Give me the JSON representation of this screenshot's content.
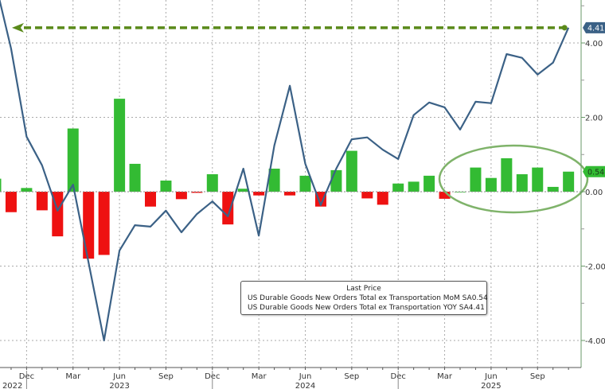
{
  "chart_data": {
    "type": "bar+line",
    "title": "",
    "legend": {
      "title": "Last Price",
      "position": "bottom-center (inset)",
      "entries": [
        {
          "name": "US Durable Goods New Orders Total ex Transportation MoM SA",
          "last": "0.54",
          "color": "#33bb33",
          "type": "bar"
        },
        {
          "name": "US Durable Goods New Orders Total ex Transportation YOY SA",
          "last": "4.41",
          "color": "#3b6186",
          "type": "line"
        }
      ]
    },
    "y_axis": {
      "position": "right",
      "ticks": [
        "4.00",
        "2.00",
        "0.00",
        "-2.00",
        "-4.00"
      ],
      "tick_values": [
        4,
        2,
        0,
        -2,
        -4
      ],
      "range": [
        -4.9,
        5.2
      ],
      "grid": true
    },
    "x_axis": {
      "month_ticks": [
        "Dec",
        "Mar",
        "Jun",
        "Sep",
        "Dec",
        "Mar",
        "Jun",
        "Sep",
        "Dec",
        "Mar",
        "Jun",
        "Sep"
      ],
      "year_labels": [
        {
          "label": "2022",
          "under": "Dec"
        },
        {
          "label": "2023",
          "under": "Jun"
        },
        {
          "label": "2024",
          "under": "Jun"
        },
        {
          "label": "2025",
          "under": "Jun"
        }
      ]
    },
    "categories": [
      "2022-10",
      "2022-11",
      "2022-12",
      "2023-01",
      "2023-02",
      "2023-03",
      "2023-04",
      "2023-05",
      "2023-06",
      "2023-07",
      "2023-08",
      "2023-09",
      "2023-10",
      "2023-11",
      "2023-12",
      "2024-01",
      "2024-02",
      "2024-03",
      "2024-04",
      "2024-05",
      "2024-06",
      "2024-07",
      "2024-08",
      "2024-09",
      "2024-10",
      "2024-11",
      "2024-12",
      "2025-01",
      "2025-02",
      "2025-03",
      "2025-04",
      "2025-05",
      "2025-06",
      "2025-07",
      "2025-08",
      "2025-09",
      "2025-10",
      "2025-11"
    ],
    "series": [
      {
        "name": "US Durable Goods New Orders Total ex Transportation MoM SA",
        "type": "bar",
        "positive_color": "#33bb33",
        "negative_color": "#ee1111",
        "values": [
          0.35,
          -0.55,
          0.1,
          -0.5,
          -1.2,
          1.7,
          -1.8,
          -1.7,
          2.5,
          0.75,
          -0.4,
          0.3,
          -0.2,
          -0.03,
          0.47,
          -0.88,
          0.08,
          -0.1,
          0.62,
          -0.1,
          0.43,
          -0.4,
          0.58,
          1.1,
          -0.18,
          -0.35,
          0.22,
          0.27,
          0.43,
          -0.19,
          0.0,
          0.65,
          0.37,
          0.9,
          0.47,
          0.65,
          0.13,
          0.54
        ]
      },
      {
        "name": "US Durable Goods New Orders Total ex Transportation YOY SA",
        "type": "line",
        "color": "#3b6186",
        "values": [
          5.6,
          3.85,
          1.48,
          0.71,
          -0.51,
          0.19,
          -1.9,
          -4.0,
          -1.58,
          -0.9,
          -0.94,
          -0.51,
          -1.09,
          -0.6,
          -0.26,
          -0.66,
          0.62,
          -1.18,
          1.24,
          2.85,
          0.75,
          -0.36,
          0.62,
          1.41,
          1.46,
          1.13,
          0.88,
          2.06,
          2.4,
          2.27,
          1.67,
          2.42,
          2.38,
          3.7,
          3.6,
          3.15,
          3.47,
          4.41
        ]
      }
    ],
    "last_value_labels": [
      {
        "value": "4.41",
        "color": "#3b6186",
        "series": "YOY"
      },
      {
        "value": "0.54",
        "color": "#33bb33",
        "series": "MoM"
      }
    ],
    "annotations": [
      {
        "type": "dashed-arrow",
        "color": "#5a8a1a",
        "from_category": "2025-11",
        "to": "left edge",
        "level": 4.41,
        "note": "horizontal arrow from latest YOY value back to late-2022 level"
      },
      {
        "type": "ellipse",
        "color": "#7fb36a",
        "around_categories": [
          "2025-04",
          "2025-11"
        ],
        "note": "highlights string of positive MoM prints"
      }
    ]
  }
}
